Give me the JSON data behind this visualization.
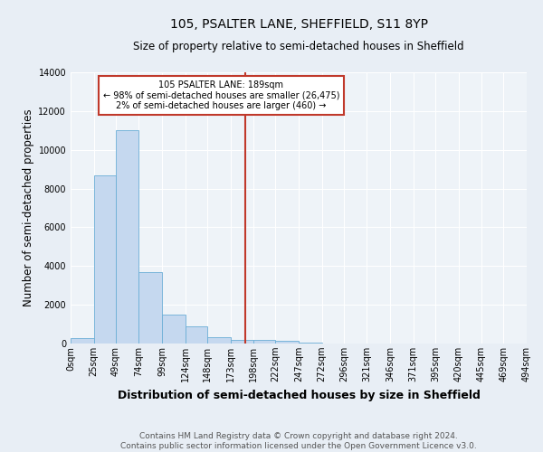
{
  "title": "105, PSALTER LANE, SHEFFIELD, S11 8YP",
  "subtitle": "Size of property relative to semi-detached houses in Sheffield",
  "xlabel": "Distribution of semi-detached houses by size in Sheffield",
  "ylabel": "Number of semi-detached properties",
  "footer": "Contains HM Land Registry data © Crown copyright and database right 2024.\nContains public sector information licensed under the Open Government Licence v3.0.",
  "bin_labels": [
    "0sqm",
    "25sqm",
    "49sqm",
    "74sqm",
    "99sqm",
    "124sqm",
    "148sqm",
    "173sqm",
    "198sqm",
    "222sqm",
    "247sqm",
    "272sqm",
    "296sqm",
    "321sqm",
    "346sqm",
    "371sqm",
    "395sqm",
    "420sqm",
    "445sqm",
    "469sqm",
    "494sqm"
  ],
  "bin_edges": [
    0,
    25,
    49,
    74,
    99,
    124,
    148,
    173,
    198,
    222,
    247,
    272,
    296,
    321,
    346,
    371,
    395,
    420,
    445,
    469,
    494
  ],
  "bar_values": [
    300,
    8700,
    11000,
    3700,
    1500,
    900,
    350,
    200,
    200,
    150,
    50,
    20,
    5,
    2,
    1,
    0,
    0,
    0,
    0,
    0
  ],
  "bar_color": "#c5d8ef",
  "bar_edge_color": "#6baed6",
  "property_size": 189,
  "property_label": "105 PSALTER LANE: 189sqm",
  "pct_smaller": 98,
  "pct_larger": 2,
  "n_smaller": 26475,
  "n_larger": 460,
  "vline_color": "#c0392b",
  "annotation_box_color": "#c0392b",
  "ylim": [
    0,
    14000
  ],
  "yticks": [
    0,
    2000,
    4000,
    6000,
    8000,
    10000,
    12000,
    14000
  ],
  "bg_color": "#e8eef5",
  "plot_bg_color": "#eef3f8",
  "grid_color": "#ffffff",
  "title_fontsize": 10,
  "subtitle_fontsize": 8.5,
  "axis_label_fontsize": 8.5,
  "tick_fontsize": 7,
  "footer_fontsize": 6.5
}
